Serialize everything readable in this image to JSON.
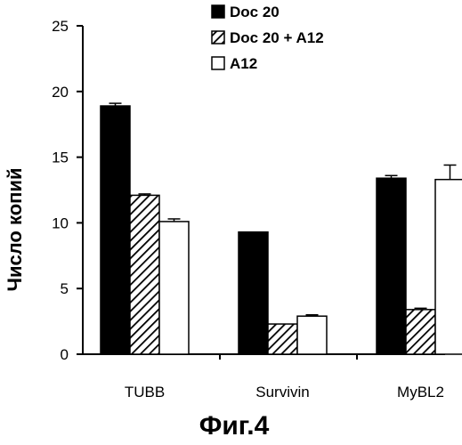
{
  "chart_data": {
    "type": "bar",
    "categories": [
      "TUBB",
      "Survivin",
      "MyBL2"
    ],
    "series": [
      {
        "name": "Doc 20",
        "values": [
          18.9,
          9.3,
          13.4
        ],
        "errors": [
          0.2,
          0.0,
          0.2
        ],
        "fill": "solid",
        "color": "#000000"
      },
      {
        "name": "Doc 20 + A12",
        "values": [
          12.1,
          2.3,
          3.4
        ],
        "errors": [
          0.1,
          0.0,
          0.1
        ],
        "fill": "hatch",
        "color": "#000000"
      },
      {
        "name": "A12",
        "values": [
          10.1,
          2.9,
          13.3
        ],
        "errors": [
          0.2,
          0.1,
          1.1
        ],
        "fill": "empty",
        "color": "#ffffff"
      }
    ],
    "ylabel": "Число копий",
    "ylim": [
      0,
      25
    ],
    "yticks": [
      0,
      5,
      10,
      15,
      20,
      25
    ],
    "xlabel": "",
    "grid": false,
    "legend_position": "top-right"
  },
  "caption": "Фиг.4"
}
